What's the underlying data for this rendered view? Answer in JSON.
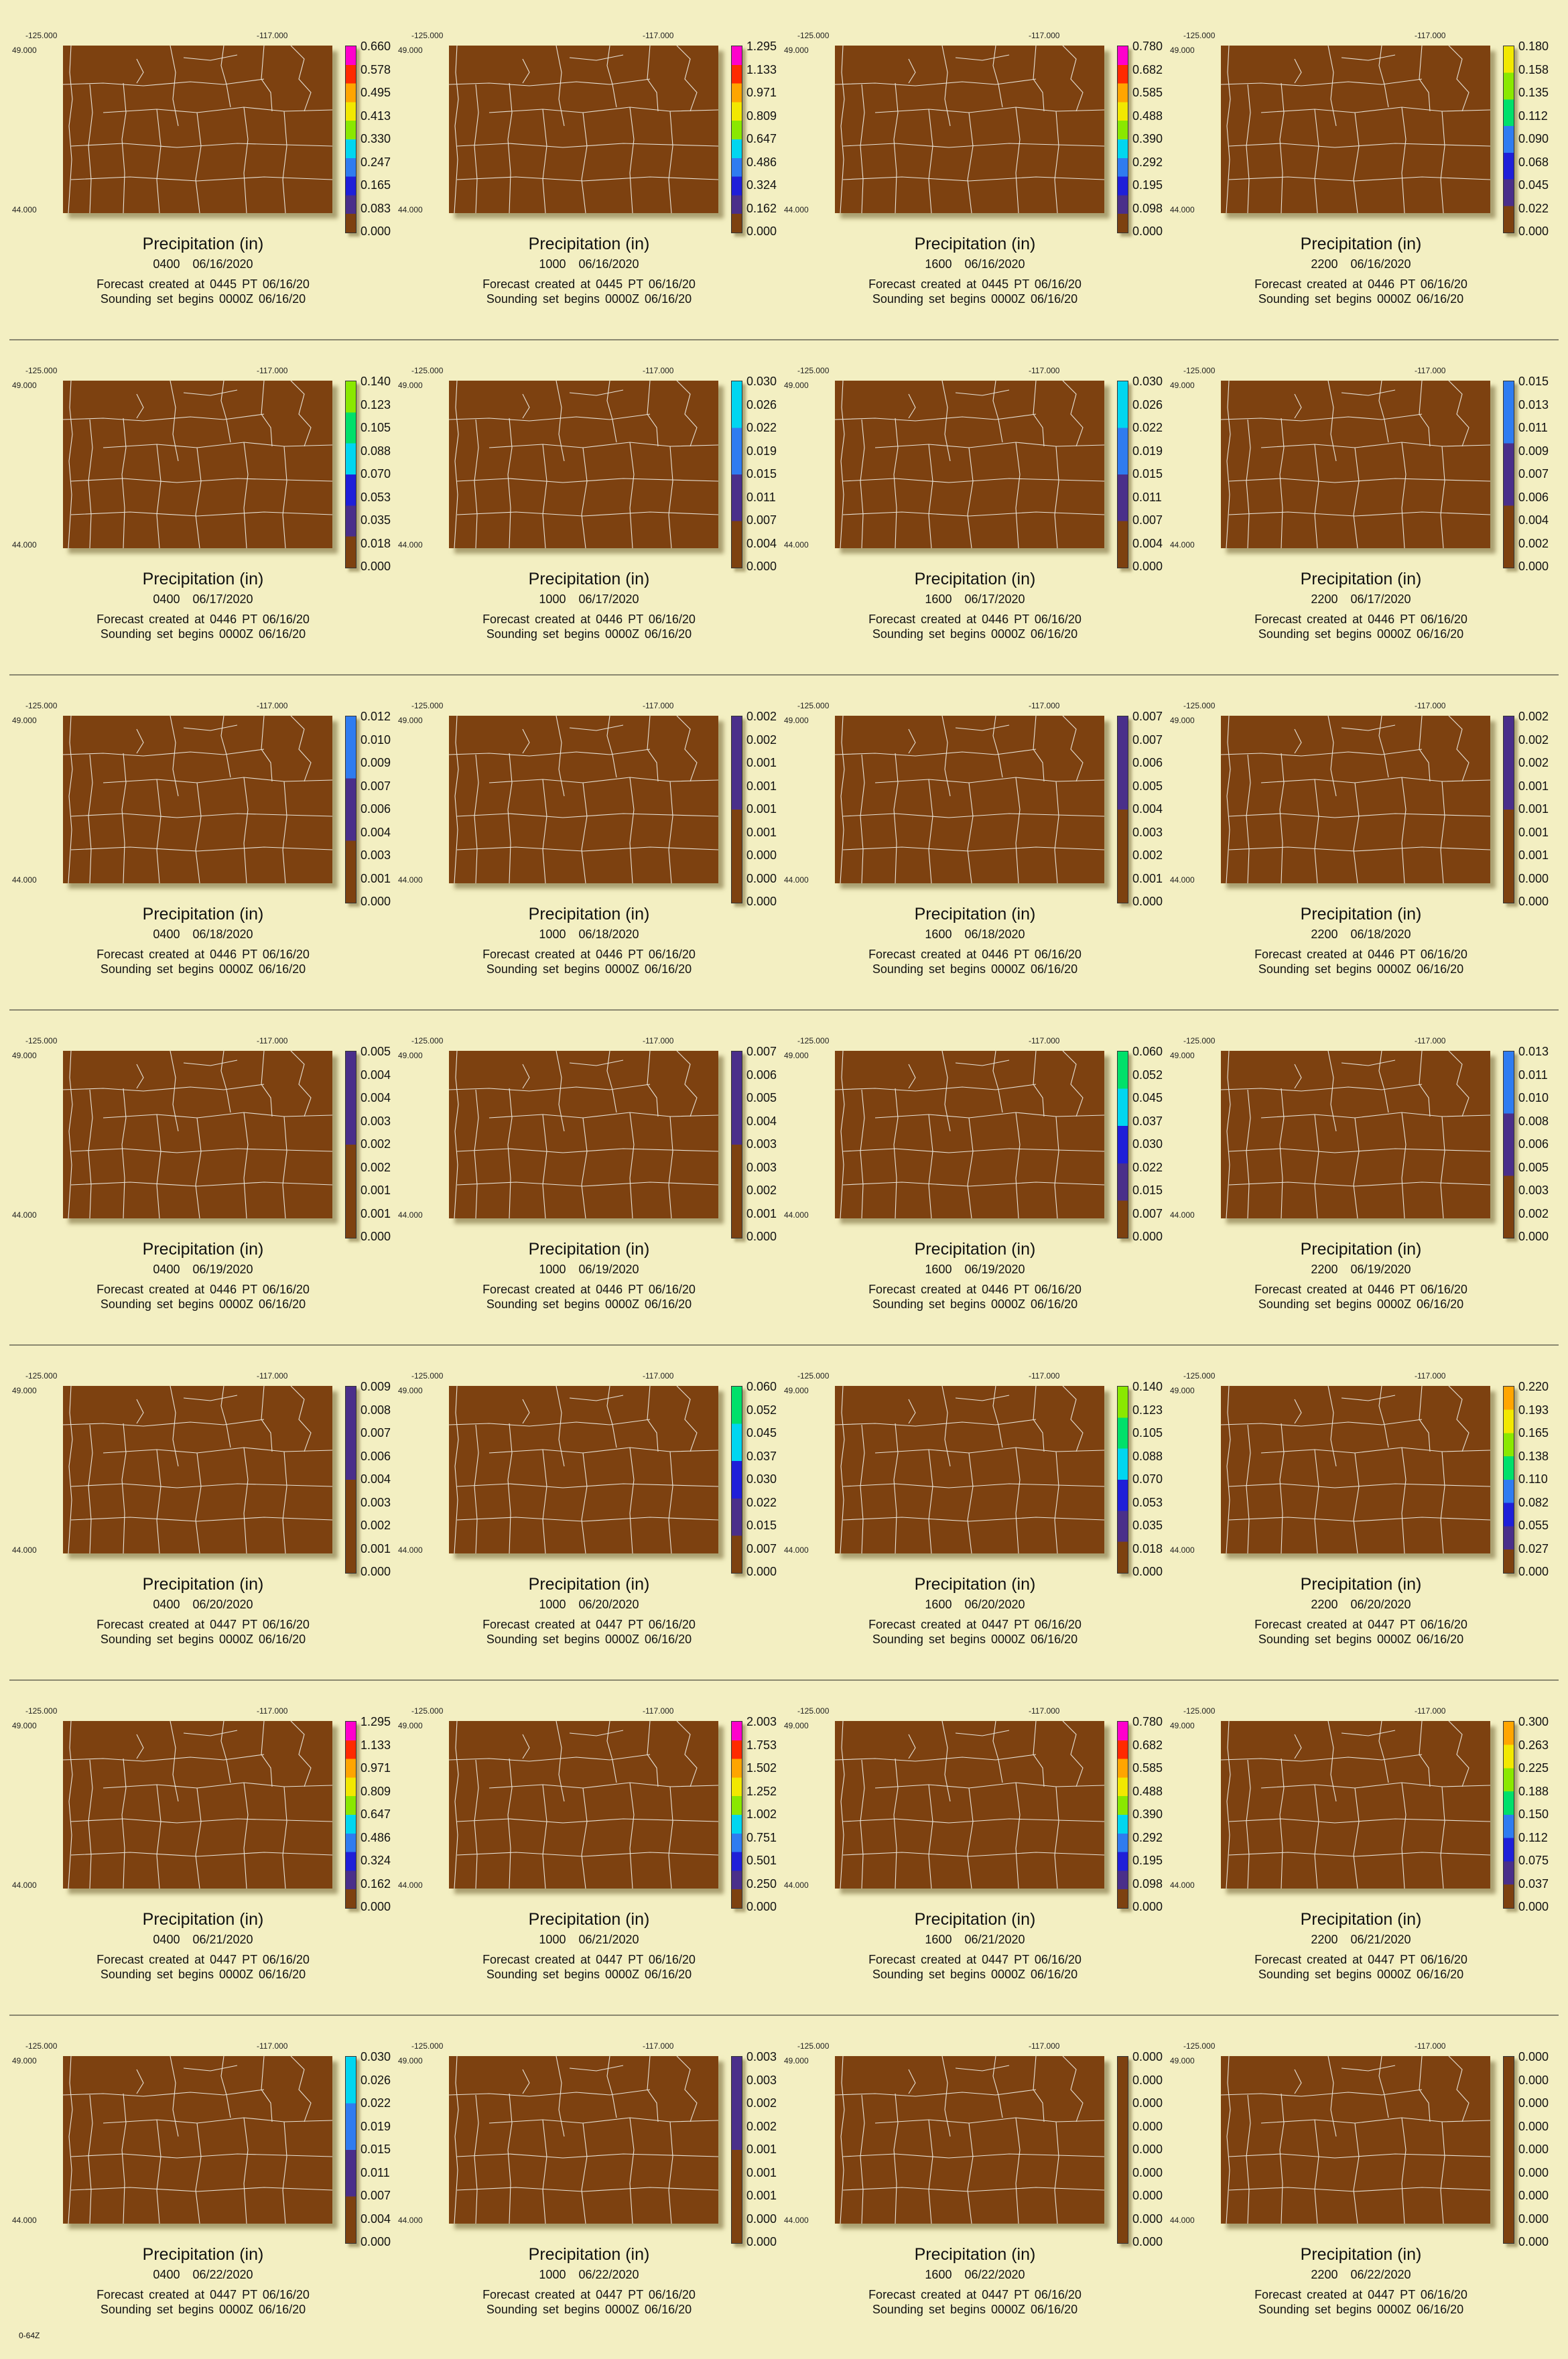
{
  "chart_data": {
    "type": "heatmap",
    "title": "Precipitation (in)",
    "region_corners": {
      "lon_west": "-125.000",
      "lon_east": "-117.000",
      "lat_north": "49.000",
      "lat_south": "44.000"
    },
    "forecast_lines": {
      "created_0445": "Forecast created at 0445 PT 06/16/20",
      "created_0446": "Forecast created at 0446 PT 06/16/20",
      "created_0447": "Forecast created at 0447 PT 06/16/20",
      "sounding": "Sounding set begins 0000Z 06/16/20"
    },
    "panels": [
      {
        "hour": "0400",
        "date": "06/16/2020",
        "forecast": "Forecast created at 0445 PT 06/16/20",
        "scale": [
          "0.660",
          "0.578",
          "0.495",
          "0.413",
          "0.330",
          "0.247",
          "0.165",
          "0.083",
          "0.000"
        ],
        "levels": 9
      },
      {
        "hour": "1000",
        "date": "06/16/2020",
        "forecast": "Forecast created at 0445 PT 06/16/20",
        "scale": [
          "1.295",
          "1.133",
          "0.971",
          "0.809",
          "0.647",
          "0.486",
          "0.324",
          "0.162",
          "0.000"
        ],
        "levels": 9
      },
      {
        "hour": "1600",
        "date": "06/16/2020",
        "forecast": "Forecast created at 0445 PT 06/16/20",
        "scale": [
          "0.780",
          "0.682",
          "0.585",
          "0.488",
          "0.390",
          "0.292",
          "0.195",
          "0.098",
          "0.000"
        ],
        "levels": 9
      },
      {
        "hour": "2200",
        "date": "06/16/2020",
        "forecast": "Forecast created at 0446 PT 06/16/20",
        "scale": [
          "0.180",
          "0.158",
          "0.135",
          "0.112",
          "0.090",
          "0.068",
          "0.045",
          "0.022",
          "0.000"
        ],
        "levels": 6
      },
      {
        "hour": "0400",
        "date": "06/17/2020",
        "forecast": "Forecast created at 0446 PT 06/16/20",
        "scale": [
          "0.140",
          "0.123",
          "0.105",
          "0.088",
          "0.070",
          "0.053",
          "0.035",
          "0.018",
          "0.000"
        ],
        "levels": 5
      },
      {
        "hour": "1000",
        "date": "06/17/2020",
        "forecast": "Forecast created at 0446 PT 06/16/20",
        "scale": [
          "0.030",
          "0.026",
          "0.022",
          "0.019",
          "0.015",
          "0.011",
          "0.007",
          "0.004",
          "0.000"
        ],
        "levels": 3
      },
      {
        "hour": "1600",
        "date": "06/17/2020",
        "forecast": "Forecast created at 0446 PT 06/16/20",
        "scale": [
          "0.030",
          "0.026",
          "0.022",
          "0.019",
          "0.015",
          "0.011",
          "0.007",
          "0.004",
          "0.000"
        ],
        "levels": 3
      },
      {
        "hour": "2200",
        "date": "06/17/2020",
        "forecast": "Forecast created at 0446 PT 06/16/20",
        "scale": [
          "0.015",
          "0.013",
          "0.011",
          "0.009",
          "0.007",
          "0.006",
          "0.004",
          "0.002",
          "0.000"
        ],
        "levels": 2
      },
      {
        "hour": "0400",
        "date": "06/18/2020",
        "forecast": "Forecast created at 0446 PT 06/16/20",
        "scale": [
          "0.012",
          "0.010",
          "0.009",
          "0.007",
          "0.006",
          "0.004",
          "0.003",
          "0.001",
          "0.000"
        ],
        "levels": 2
      },
      {
        "hour": "1000",
        "date": "06/18/2020",
        "forecast": "Forecast created at 0446 PT 06/16/20",
        "scale": [
          "0.002",
          "0.002",
          "0.001",
          "0.001",
          "0.001",
          "0.001",
          "0.000",
          "0.000",
          "0.000"
        ],
        "levels": 1
      },
      {
        "hour": "1600",
        "date": "06/18/2020",
        "forecast": "Forecast created at 0446 PT 06/16/20",
        "scale": [
          "0.007",
          "0.007",
          "0.006",
          "0.005",
          "0.004",
          "0.003",
          "0.002",
          "0.001",
          "0.000"
        ],
        "levels": 1
      },
      {
        "hour": "2200",
        "date": "06/18/2020",
        "forecast": "Forecast created at 0446 PT 06/16/20",
        "scale": [
          "0.002",
          "0.002",
          "0.002",
          "0.001",
          "0.001",
          "0.001",
          "0.001",
          "0.000",
          "0.000"
        ],
        "levels": 1
      },
      {
        "hour": "0400",
        "date": "06/19/2020",
        "forecast": "Forecast created at 0446 PT 06/16/20",
        "scale": [
          "0.005",
          "0.004",
          "0.004",
          "0.003",
          "0.002",
          "0.002",
          "0.001",
          "0.001",
          "0.000"
        ],
        "levels": 1
      },
      {
        "hour": "1000",
        "date": "06/19/2020",
        "forecast": "Forecast created at 0446 PT 06/16/20",
        "scale": [
          "0.007",
          "0.006",
          "0.005",
          "0.004",
          "0.003",
          "0.003",
          "0.002",
          "0.001",
          "0.000"
        ],
        "levels": 1
      },
      {
        "hour": "1600",
        "date": "06/19/2020",
        "forecast": "Forecast created at 0446 PT 06/16/20",
        "scale": [
          "0.060",
          "0.052",
          "0.045",
          "0.037",
          "0.030",
          "0.022",
          "0.015",
          "0.007",
          "0.000"
        ],
        "levels": 4
      },
      {
        "hour": "2200",
        "date": "06/19/2020",
        "forecast": "Forecast created at 0446 PT 06/16/20",
        "scale": [
          "0.013",
          "0.011",
          "0.010",
          "0.008",
          "0.006",
          "0.005",
          "0.003",
          "0.002",
          "0.000"
        ],
        "levels": 2
      },
      {
        "hour": "0400",
        "date": "06/20/2020",
        "forecast": "Forecast created at 0447 PT 06/16/20",
        "scale": [
          "0.009",
          "0.008",
          "0.007",
          "0.006",
          "0.004",
          "0.003",
          "0.002",
          "0.001",
          "0.000"
        ],
        "levels": 1
      },
      {
        "hour": "1000",
        "date": "06/20/2020",
        "forecast": "Forecast created at 0447 PT 06/16/20",
        "scale": [
          "0.060",
          "0.052",
          "0.045",
          "0.037",
          "0.030",
          "0.022",
          "0.015",
          "0.007",
          "0.000"
        ],
        "levels": 4
      },
      {
        "hour": "1600",
        "date": "06/20/2020",
        "forecast": "Forecast created at 0447 PT 06/16/20",
        "scale": [
          "0.140",
          "0.123",
          "0.105",
          "0.088",
          "0.070",
          "0.053",
          "0.035",
          "0.018",
          "0.000"
        ],
        "levels": 5
      },
      {
        "hour": "2200",
        "date": "06/20/2020",
        "forecast": "Forecast created at 0447 PT 06/16/20",
        "scale": [
          "0.220",
          "0.193",
          "0.165",
          "0.138",
          "0.110",
          "0.082",
          "0.055",
          "0.027",
          "0.000"
        ],
        "levels": 7
      },
      {
        "hour": "0400",
        "date": "06/21/2020",
        "forecast": "Forecast created at 0447 PT 06/16/20",
        "scale": [
          "1.295",
          "1.133",
          "0.971",
          "0.809",
          "0.647",
          "0.486",
          "0.324",
          "0.162",
          "0.000"
        ],
        "levels": 9
      },
      {
        "hour": "1000",
        "date": "06/21/2020",
        "forecast": "Forecast created at 0447 PT 06/16/20",
        "scale": [
          "2.003",
          "1.753",
          "1.502",
          "1.252",
          "1.002",
          "0.751",
          "0.501",
          "0.250",
          "0.000"
        ],
        "levels": 9
      },
      {
        "hour": "1600",
        "date": "06/21/2020",
        "forecast": "Forecast created at 0447 PT 06/16/20",
        "scale": [
          "0.780",
          "0.682",
          "0.585",
          "0.488",
          "0.390",
          "0.292",
          "0.195",
          "0.098",
          "0.000"
        ],
        "levels": 9
      },
      {
        "hour": "2200",
        "date": "06/21/2020",
        "forecast": "Forecast created at 0447 PT 06/16/20",
        "scale": [
          "0.300",
          "0.263",
          "0.225",
          "0.188",
          "0.150",
          "0.112",
          "0.075",
          "0.037",
          "0.000"
        ],
        "levels": 7
      },
      {
        "hour": "0400",
        "date": "06/22/2020",
        "forecast": "Forecast created at 0447 PT 06/16/20",
        "scale": [
          "0.030",
          "0.026",
          "0.022",
          "0.019",
          "0.015",
          "0.011",
          "0.007",
          "0.004",
          "0.000"
        ],
        "levels": 3
      },
      {
        "hour": "1000",
        "date": "06/22/2020",
        "forecast": "Forecast created at 0447 PT 06/16/20",
        "scale": [
          "0.003",
          "0.003",
          "0.002",
          "0.002",
          "0.001",
          "0.001",
          "0.001",
          "0.000",
          "0.000"
        ],
        "levels": 1
      },
      {
        "hour": "1600",
        "date": "06/22/2020",
        "forecast": "Forecast created at 0447 PT 06/16/20",
        "scale": [
          "0.000",
          "0.000",
          "0.000",
          "0.000",
          "0.000",
          "0.000",
          "0.000",
          "0.000",
          "0.000"
        ],
        "levels": 0
      },
      {
        "hour": "2200",
        "date": "06/22/2020",
        "forecast": "Forecast created at 0447 PT 06/16/20",
        "scale": [
          "0.000",
          "0.000",
          "0.000",
          "0.000",
          "0.000",
          "0.000",
          "0.000",
          "0.000",
          "0.000"
        ],
        "levels": 0
      }
    ]
  },
  "colors": {
    "background": "#f3efc2",
    "map_fill": "#7d4110",
    "boundaries": "#e8e2d6",
    "colorbar_ramp": [
      "#7d4110",
      "#4a2f8a",
      "#1f1fd8",
      "#2f7cf0",
      "#00d6f0",
      "#00e06a",
      "#8ae800",
      "#f2e800",
      "#ffa500",
      "#ff2a00",
      "#ff00cc"
    ]
  },
  "footer": "0-64Z"
}
